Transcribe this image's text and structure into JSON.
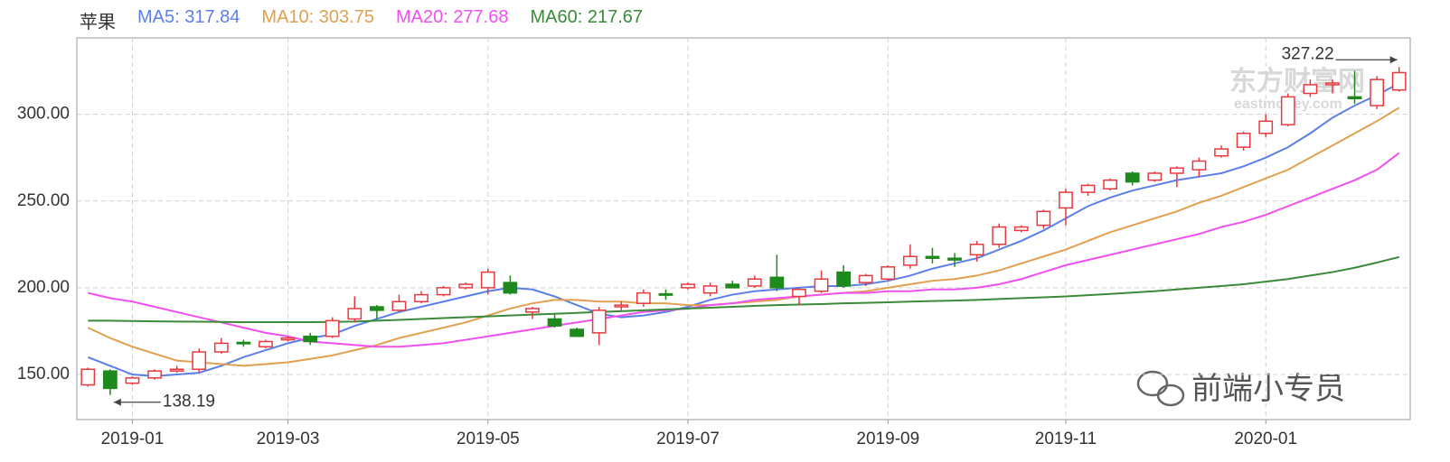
{
  "chart_data": {
    "type": "candlestick",
    "title": "苹果",
    "categories": [
      null,
      null,
      "2019-01",
      null,
      null,
      null,
      null,
      null,
      null,
      "2019-03",
      null,
      null,
      null,
      null,
      null,
      null,
      null,
      null,
      "2019-05",
      null,
      null,
      null,
      null,
      null,
      null,
      null,
      null,
      "2019-07",
      null,
      null,
      null,
      null,
      null,
      null,
      null,
      null,
      "2019-09",
      null,
      null,
      null,
      null,
      null,
      null,
      null,
      "2019-11",
      null,
      null,
      null,
      null,
      null,
      null,
      null,
      null,
      "2020-01",
      null,
      null,
      null,
      null,
      null,
      null
    ],
    "open": [
      144,
      152,
      145,
      148,
      152,
      153,
      163,
      168.5,
      166,
      170,
      172,
      172,
      182,
      189,
      187,
      192,
      196,
      200,
      200,
      203,
      186,
      182,
      176,
      174,
      189,
      191,
      196.5,
      200,
      197,
      202,
      201,
      206,
      195,
      198,
      209,
      203,
      205,
      213,
      218,
      217,
      219,
      225,
      233,
      236,
      246,
      255,
      257,
      266,
      262,
      266,
      268,
      276,
      281,
      289,
      294,
      312,
      317,
      310,
      305,
      314
    ],
    "high": [
      154,
      153,
      149,
      153,
      155,
      165,
      171,
      170,
      170,
      172,
      174,
      183,
      195,
      190,
      196,
      198,
      201,
      203,
      211,
      207,
      189,
      185,
      177,
      189,
      192,
      199,
      199,
      203,
      203,
      204,
      207,
      219,
      200,
      210,
      213,
      208,
      213,
      225,
      223,
      220,
      227,
      237,
      236,
      245,
      257,
      260,
      263,
      267,
      267,
      270,
      275,
      282,
      290,
      300,
      312,
      320,
      320,
      325,
      322,
      327.22
    ],
    "low": [
      143,
      138.19,
      144,
      147,
      151,
      151,
      162,
      166,
      165,
      169,
      167,
      171,
      180,
      182,
      186,
      191,
      195,
      199,
      196,
      196,
      182,
      177,
      172,
      167,
      187,
      189,
      193,
      199,
      195,
      200,
      200,
      198,
      190,
      197,
      200,
      201,
      204,
      211,
      214,
      212,
      215,
      223,
      232,
      234,
      236,
      253,
      256,
      259,
      261,
      258,
      264,
      275,
      279,
      287,
      293,
      310,
      312,
      306,
      303,
      313
    ],
    "close": [
      153,
      142,
      148,
      152,
      153,
      163,
      168,
      168,
      169,
      171,
      169,
      181,
      188,
      187,
      192,
      196,
      200,
      202,
      209,
      197,
      188,
      178,
      172,
      187,
      190,
      197,
      196,
      202,
      201,
      200,
      205,
      200,
      199,
      205,
      201,
      207,
      212,
      218,
      217,
      216,
      225,
      235,
      235,
      244,
      255,
      259,
      262,
      261,
      266,
      269,
      273,
      280,
      289,
      296,
      310,
      317,
      318,
      309,
      320,
      324
    ],
    "up_color": "#e8393f",
    "down_color": "#1e8a1e",
    "series": [
      {
        "name": "MA5: 317.84",
        "color": "#5b7fe8",
        "values": [
          160,
          155,
          150,
          149,
          150,
          151,
          155,
          160,
          164,
          168,
          171,
          173,
          178,
          182,
          186,
          189,
          192,
          195,
          198,
          200,
          199,
          195,
          190,
          185,
          183,
          184,
          186,
          189,
          193,
          196,
          198,
          199,
          200,
          201,
          201,
          202,
          204,
          207,
          211,
          214,
          217,
          222,
          227,
          233,
          240,
          247,
          252,
          256,
          259,
          262,
          264,
          266,
          270,
          275,
          281,
          289,
          298,
          305,
          311,
          317.84
        ]
      },
      {
        "name": "MA10: 303.75",
        "color": "#e0a050",
        "values": [
          177,
          171,
          166,
          162,
          158,
          157,
          156,
          155,
          156,
          157,
          159,
          161,
          164,
          167,
          171,
          174,
          177,
          180,
          184,
          188,
          191,
          193,
          193,
          192,
          192,
          191,
          191,
          190,
          190,
          191,
          192,
          193,
          195,
          196,
          197,
          198,
          200,
          202,
          204,
          205,
          207,
          210,
          214,
          218,
          222,
          227,
          232,
          236,
          240,
          244,
          249,
          253,
          258,
          263,
          268,
          275,
          282,
          289,
          296,
          303.75
        ]
      },
      {
        "name": "MA20: 277.68",
        "color": "#f050f0",
        "values": [
          197,
          194,
          192,
          189,
          186,
          183,
          180,
          177,
          174,
          172,
          169,
          168,
          167,
          166,
          166,
          167,
          168,
          170,
          172,
          174,
          176,
          178,
          180,
          182,
          184,
          186,
          187,
          188,
          190,
          191,
          193,
          194,
          195,
          196,
          197,
          197,
          198,
          198,
          199,
          199,
          200,
          202,
          205,
          209,
          213,
          216,
          219,
          222,
          225,
          228,
          231,
          235,
          238,
          242,
          247,
          252,
          257,
          262,
          268,
          277.68
        ]
      },
      {
        "name": "MA60: 217.67",
        "color": "#3a8a3a",
        "values": [
          181,
          181,
          180.8,
          180.6,
          180.5,
          180.4,
          180.3,
          180.2,
          180.2,
          180.2,
          180.2,
          180.3,
          180.5,
          181,
          181.5,
          182,
          182.5,
          183,
          183.5,
          184,
          184.5,
          185,
          185.5,
          186,
          186.5,
          187,
          187.5,
          188,
          188.5,
          189,
          189.5,
          190,
          190.3,
          190.6,
          191,
          191.3,
          191.6,
          192,
          192.3,
          192.6,
          193,
          193.5,
          194,
          194.5,
          195,
          195.7,
          196.4,
          197.2,
          198,
          199,
          200,
          201,
          202,
          203.5,
          205,
          207,
          209,
          211.5,
          214.5,
          217.67
        ]
      }
    ],
    "ylim": [
      124,
      344
    ],
    "yticks": [
      {
        "value": 150,
        "label": "150.00"
      },
      {
        "value": 200,
        "label": "200.00"
      },
      {
        "value": 250,
        "label": "250.00"
      },
      {
        "value": 300,
        "label": "300.00"
      }
    ],
    "grid": true,
    "watermarks": [
      "东方财富网",
      "eastmoney.com",
      "前端小专员"
    ]
  }
}
